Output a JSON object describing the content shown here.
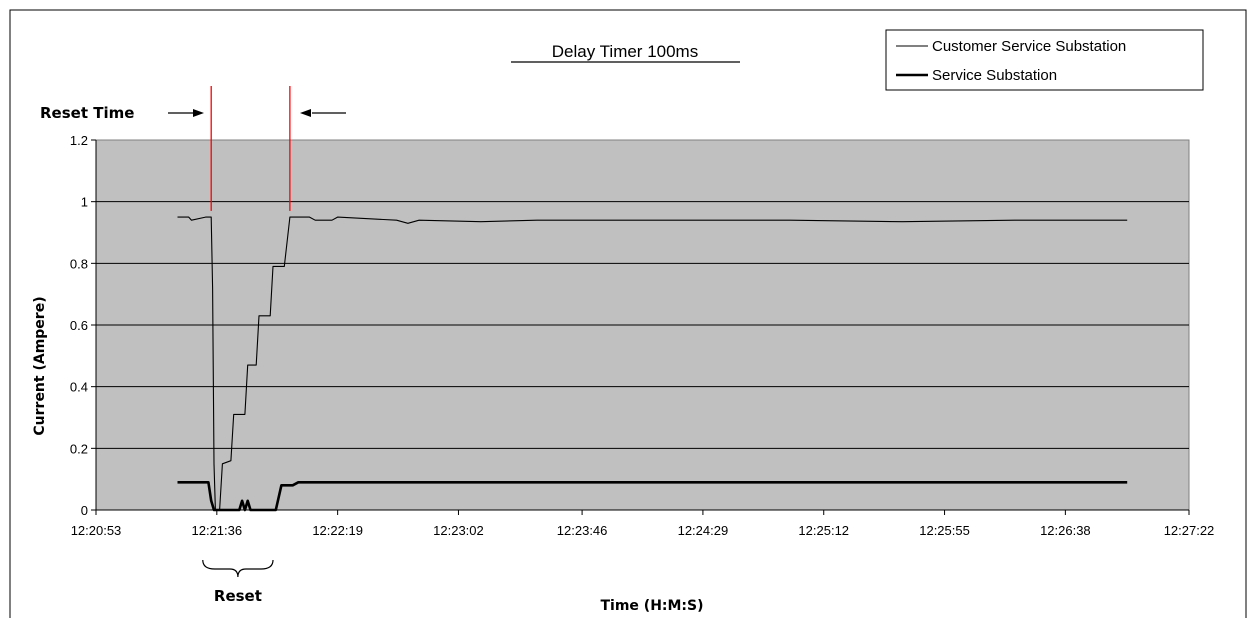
{
  "chart_data": {
    "type": "line",
    "title": "Delay Timer 100ms",
    "xlabel": "Time (H:M:S)",
    "ylabel": "Current  (Ampere)",
    "ylim": [
      0,
      1.2
    ],
    "yticks": [
      "0",
      "0.2",
      "0.4",
      "0.6",
      "0.8",
      "1",
      "1.2"
    ],
    "xlim": [
      "12:20:53",
      "12:27:22"
    ],
    "xticks": [
      "12:20:53",
      "12:21:36",
      "12:22:19",
      "12:23:02",
      "12:23:46",
      "12:24:29",
      "12:25:12",
      "12:25:55",
      "12:26:38",
      "12:27:22"
    ],
    "grid": "horizontal",
    "legend": {
      "position": "top-right"
    },
    "plot_background": "#c0c0c0",
    "annotation_color": "#ff0000",
    "series": [
      {
        "name": "Customer Service Substation",
        "line": "thin",
        "points": [
          [
            "12:21:22",
            0.95
          ],
          [
            "12:21:26",
            0.95
          ],
          [
            "12:21:27",
            0.94
          ],
          [
            "12:21:32",
            0.95
          ],
          [
            "12:21:34",
            0.95
          ],
          [
            "12:21:34.5",
            0.72
          ],
          [
            "12:21:35",
            0.15
          ],
          [
            "12:21:35.5",
            0.0
          ],
          [
            "12:21:37",
            0.0
          ],
          [
            "12:21:38",
            0.15
          ],
          [
            "12:21:41",
            0.16
          ],
          [
            "12:21:42",
            0.31
          ],
          [
            "12:21:46",
            0.31
          ],
          [
            "12:21:47",
            0.47
          ],
          [
            "12:21:50",
            0.47
          ],
          [
            "12:21:51",
            0.63
          ],
          [
            "12:21:55",
            0.63
          ],
          [
            "12:21:56",
            0.79
          ],
          [
            "12:22:00",
            0.79
          ],
          [
            "12:22:02",
            0.95
          ],
          [
            "12:22:09",
            0.95
          ],
          [
            "12:22:11",
            0.94
          ],
          [
            "12:22:17",
            0.94
          ],
          [
            "12:22:19",
            0.95
          ],
          [
            "12:22:40",
            0.94
          ],
          [
            "12:22:44",
            0.93
          ],
          [
            "12:22:48",
            0.94
          ],
          [
            "12:23:10",
            0.935
          ],
          [
            "12:23:30",
            0.94
          ],
          [
            "12:24:00",
            0.94
          ],
          [
            "12:24:30",
            0.94
          ],
          [
            "12:25:00",
            0.94
          ],
          [
            "12:25:40",
            0.935
          ],
          [
            "12:26:20",
            0.94
          ],
          [
            "12:27:00",
            0.94
          ]
        ]
      },
      {
        "name": "Service Substation",
        "line": "thick",
        "points": [
          [
            "12:21:22",
            0.09
          ],
          [
            "12:21:33",
            0.09
          ],
          [
            "12:21:34",
            0.03
          ],
          [
            "12:21:35",
            0.0
          ],
          [
            "12:21:44",
            0.0
          ],
          [
            "12:21:45",
            0.03
          ],
          [
            "12:21:46",
            0.0
          ],
          [
            "12:21:47",
            0.03
          ],
          [
            "12:21:48",
            0.0
          ],
          [
            "12:21:57",
            0.0
          ],
          [
            "12:21:59",
            0.08
          ],
          [
            "12:22:03",
            0.08
          ],
          [
            "12:22:05",
            0.09
          ],
          [
            "12:27:00",
            0.09
          ]
        ]
      }
    ],
    "annotations": [
      {
        "label": "Reset Time",
        "type": "vertical-marker",
        "x": "12:21:34"
      },
      {
        "label": "",
        "type": "vertical-marker",
        "x": "12:22:02"
      },
      {
        "label": "Reset",
        "type": "brace",
        "from": "12:21:31",
        "to": "12:21:56"
      }
    ]
  }
}
